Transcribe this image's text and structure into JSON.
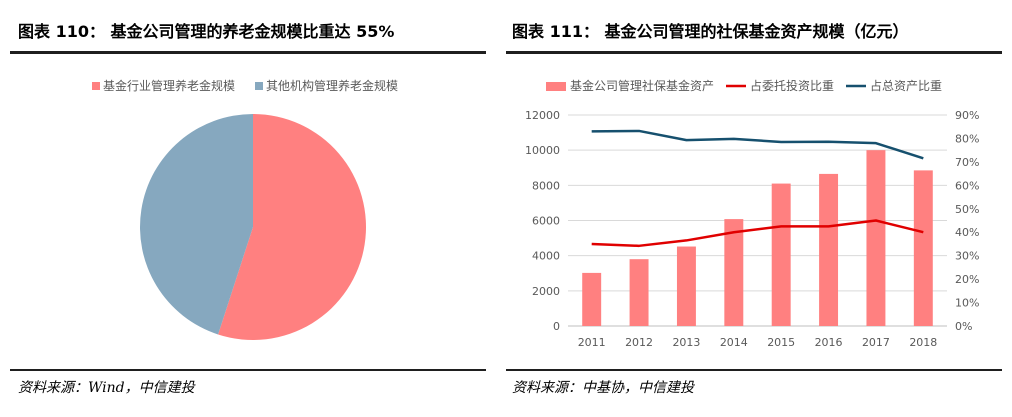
{
  "left_panel": {
    "title": "图表 110：  基金公司管理的养老金规模比重达 55%",
    "source": "资料来源：Wind，中信建投",
    "chart_data": {
      "type": "pie",
      "title": "基金公司管理的养老金规模比重达 55%",
      "slices": [
        {
          "label": "基金行业管理养老金规模",
          "value": 55,
          "color": "#FF8080"
        },
        {
          "label": "其他机构管理养老金规模",
          "value": 45,
          "color": "#86A8BF"
        }
      ],
      "legend": "top"
    }
  },
  "right_panel": {
    "title": "图表 111：  基金公司管理的社保基金资产规模（亿元）",
    "source": "资料来源：中基协，中信建投",
    "chart_data": {
      "type": "bar",
      "title": "基金公司管理的社保基金资产规模（亿元）",
      "categories": [
        "2011",
        "2012",
        "2013",
        "2014",
        "2015",
        "2016",
        "2017",
        "2018"
      ],
      "series": [
        {
          "name": "基金公司管理社保基金资产",
          "type": "bar",
          "axis": "left",
          "color": "#FF8080",
          "values": [
            3020,
            3800,
            4520,
            6080,
            8100,
            8650,
            10000,
            8850
          ]
        },
        {
          "name": "占委托投资比重",
          "type": "line",
          "axis": "right",
          "color": "#E00000",
          "values": [
            0.35,
            0.342,
            0.365,
            0.4,
            0.425,
            0.425,
            0.45,
            0.4
          ]
        },
        {
          "name": "占总资产比重",
          "type": "line",
          "axis": "right",
          "color": "#16506E",
          "values": [
            0.83,
            0.832,
            0.793,
            0.798,
            0.785,
            0.786,
            0.78,
            0.715
          ]
        }
      ],
      "ylim_left": [
        0,
        12000
      ],
      "yticks_left": [
        "0",
        "2000",
        "4000",
        "6000",
        "8000",
        "10000",
        "12000"
      ],
      "ylim_right": [
        0,
        0.9
      ],
      "yticks_right": [
        "0%",
        "10%",
        "20%",
        "30%",
        "40%",
        "50%",
        "60%",
        "70%",
        "80%",
        "90%"
      ],
      "legend": "top"
    }
  }
}
